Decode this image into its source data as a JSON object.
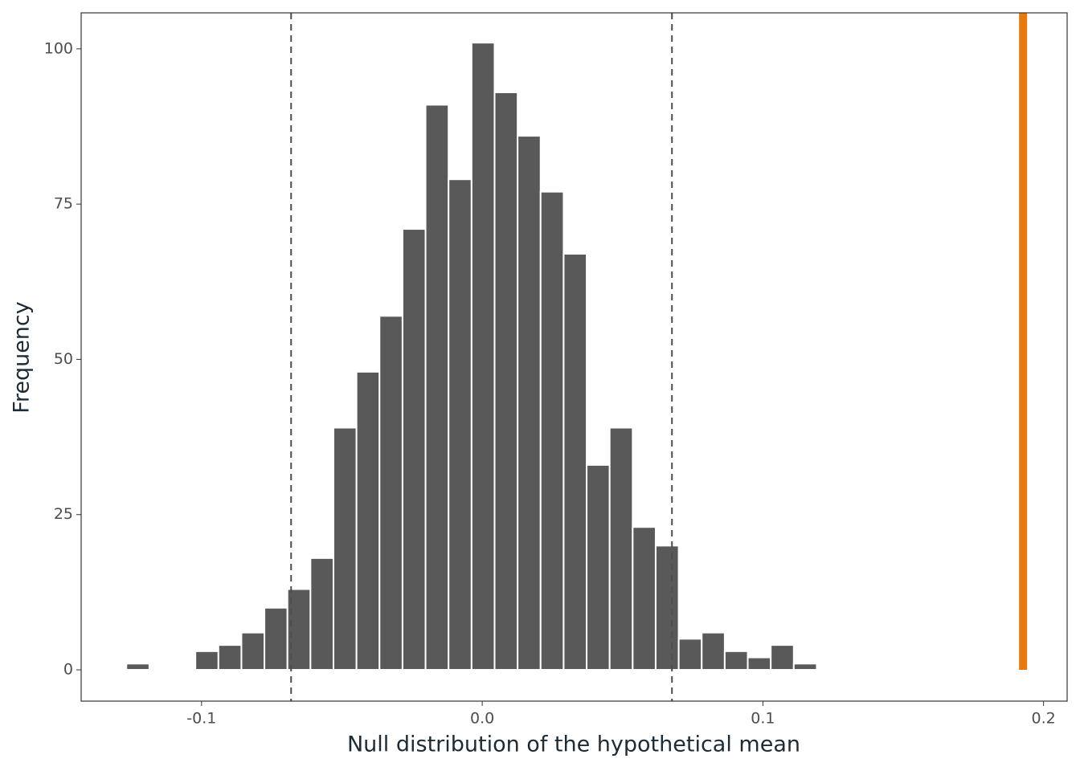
{
  "chart_data": {
    "type": "histogram",
    "x_label": "Null distribution of the hypothetical mean",
    "y_label": "Frequency",
    "bins": [
      -0.1268,
      -0.1186,
      -0.1104,
      -0.1022,
      -0.094,
      -0.0858,
      -0.0776,
      -0.0694,
      -0.0612,
      -0.053,
      -0.0448,
      -0.0366,
      -0.0284,
      -0.0202,
      -0.012,
      -0.0038,
      0.0044,
      0.0126,
      0.0208,
      0.029,
      0.0372,
      0.0454,
      0.0536,
      0.0618,
      0.07,
      0.0782,
      0.0864,
      0.0946,
      0.1028,
      0.111,
      0.1192
    ],
    "values": [
      1,
      0,
      0,
      3,
      4,
      6,
      10,
      13,
      18,
      39,
      48,
      57,
      71,
      91,
      79,
      101,
      93,
      86,
      77,
      67,
      33,
      39,
      23,
      20,
      5,
      6,
      3,
      2,
      4,
      1
    ],
    "color": "#595959",
    "reference_lines": [
      {
        "value": -0.0681,
        "color": "#4d4d4d"
      },
      {
        "value": 0.0676,
        "color": "#4d4d4d"
      }
    ],
    "observed_line": {
      "value": 0.1927,
      "color": "#e8790d"
    },
    "xlim": [
      -0.1429,
      0.2084
    ],
    "ylim": [
      -5.04,
      105.8
    ],
    "xticks": [
      -0.1,
      {
        "value": 0,
        "label": "0.0"
      },
      0.1,
      0.2
    ],
    "yticks": [
      0,
      25,
      50,
      75,
      100
    ]
  }
}
